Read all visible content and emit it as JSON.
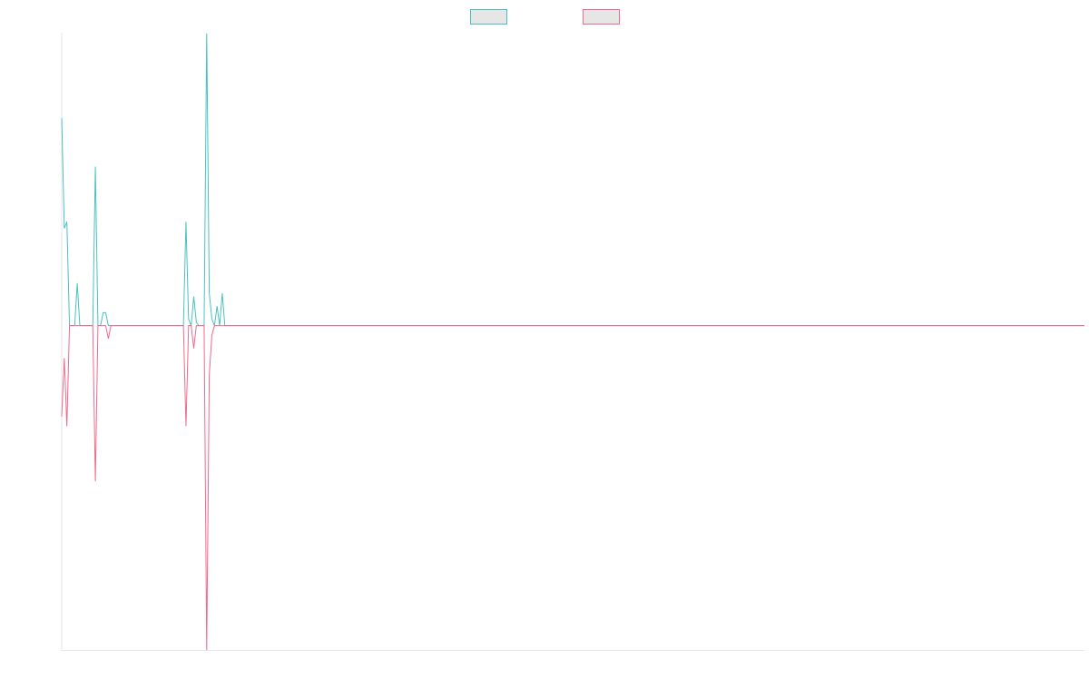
{
  "chart_data": {
    "type": "line",
    "title": "",
    "xlabel": "",
    "ylabel": "",
    "grid": false,
    "legend_position": "top-center",
    "xlim": [
      0,
      395
    ],
    "ylim": [
      -1.0,
      0.9
    ],
    "series": [
      {
        "color": "#4bc0c0",
        "legend_swatch": true,
        "points": [
          [
            0,
            0.64
          ],
          [
            1,
            0.3
          ],
          [
            2,
            0.32
          ],
          [
            3,
            0
          ],
          [
            4,
            0
          ],
          [
            5,
            0
          ],
          [
            6,
            0.13
          ],
          [
            7,
            0
          ],
          [
            8,
            0
          ],
          [
            9,
            0
          ],
          [
            10,
            0
          ],
          [
            11,
            0
          ],
          [
            12,
            0
          ],
          [
            13,
            0.49
          ],
          [
            14,
            0
          ],
          [
            15,
            0
          ],
          [
            16,
            0.04
          ],
          [
            17,
            0.04
          ],
          [
            18,
            0
          ],
          [
            19,
            0
          ],
          [
            20,
            0
          ],
          [
            21,
            0
          ],
          [
            22,
            0
          ],
          [
            23,
            0
          ],
          [
            24,
            0
          ],
          [
            25,
            0
          ],
          [
            26,
            0
          ],
          [
            27,
            0
          ],
          [
            28,
            0
          ],
          [
            29,
            0
          ],
          [
            30,
            0
          ],
          [
            31,
            0
          ],
          [
            32,
            0
          ],
          [
            33,
            0
          ],
          [
            34,
            0
          ],
          [
            35,
            0
          ],
          [
            36,
            0
          ],
          [
            37,
            0
          ],
          [
            38,
            0
          ],
          [
            39,
            0
          ],
          [
            40,
            0
          ],
          [
            41,
            0
          ],
          [
            42,
            0
          ],
          [
            43,
            0
          ],
          [
            44,
            0
          ],
          [
            45,
            0
          ],
          [
            46,
            0
          ],
          [
            47,
            0
          ],
          [
            48,
            0.32
          ],
          [
            49,
            0.02
          ],
          [
            50,
            0
          ],
          [
            51,
            0.09
          ],
          [
            52,
            0.01
          ],
          [
            53,
            0
          ],
          [
            54,
            0
          ],
          [
            55,
            0
          ],
          [
            56,
            0.9
          ],
          [
            57,
            0.1
          ],
          [
            58,
            0.02
          ],
          [
            59,
            0
          ],
          [
            60,
            0.06
          ],
          [
            61,
            0
          ],
          [
            62,
            0.1
          ],
          [
            63,
            0
          ],
          [
            64,
            0
          ],
          [
            395,
            0
          ]
        ]
      },
      {
        "color": "#f06a8e",
        "legend_swatch": true,
        "points": [
          [
            0,
            -0.28
          ],
          [
            1,
            -0.1
          ],
          [
            2,
            -0.31
          ],
          [
            3,
            0
          ],
          [
            4,
            0
          ],
          [
            5,
            0
          ],
          [
            6,
            0
          ],
          [
            7,
            0
          ],
          [
            8,
            0
          ],
          [
            9,
            0
          ],
          [
            10,
            0
          ],
          [
            11,
            0
          ],
          [
            12,
            0
          ],
          [
            13,
            -0.48
          ],
          [
            14,
            0
          ],
          [
            15,
            0
          ],
          [
            16,
            0
          ],
          [
            17,
            0
          ],
          [
            18,
            -0.04
          ],
          [
            19,
            0
          ],
          [
            20,
            0
          ],
          [
            21,
            0
          ],
          [
            22,
            0
          ],
          [
            23,
            0
          ],
          [
            24,
            0
          ],
          [
            25,
            0
          ],
          [
            26,
            0
          ],
          [
            27,
            0
          ],
          [
            28,
            0
          ],
          [
            29,
            0
          ],
          [
            30,
            0
          ],
          [
            31,
            0
          ],
          [
            32,
            0
          ],
          [
            33,
            0
          ],
          [
            34,
            0
          ],
          [
            35,
            0
          ],
          [
            36,
            0
          ],
          [
            37,
            0
          ],
          [
            38,
            0
          ],
          [
            39,
            0
          ],
          [
            40,
            0
          ],
          [
            41,
            0
          ],
          [
            42,
            0
          ],
          [
            43,
            0
          ],
          [
            44,
            0
          ],
          [
            45,
            0
          ],
          [
            46,
            0
          ],
          [
            47,
            0
          ],
          [
            48,
            -0.31
          ],
          [
            49,
            0
          ],
          [
            50,
            0
          ],
          [
            51,
            -0.07
          ],
          [
            52,
            0
          ],
          [
            53,
            0
          ],
          [
            54,
            0
          ],
          [
            55,
            0
          ],
          [
            56,
            -1.0
          ],
          [
            57,
            -0.15
          ],
          [
            58,
            -0.03
          ],
          [
            59,
            0
          ],
          [
            60,
            0
          ],
          [
            395,
            0
          ]
        ]
      }
    ]
  }
}
